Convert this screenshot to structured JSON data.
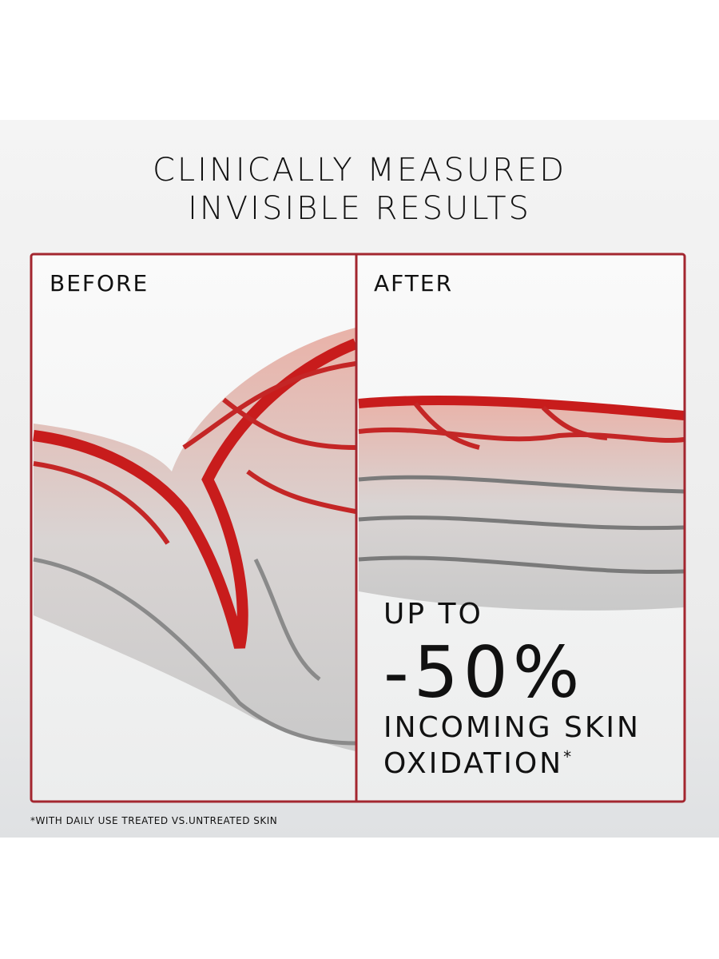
{
  "header": {
    "title_lines": [
      "CLINICALLY MEASURED",
      "INVISIBLE RESULTS"
    ]
  },
  "panels": {
    "before": {
      "label": "BEFORE"
    },
    "after": {
      "label": "AFTER"
    }
  },
  "claim": {
    "lines": [
      "UP TO",
      "-50%",
      "INCOMING SKIN",
      "OXIDATION"
    ],
    "mark": "*"
  },
  "footnote": "*WITH DAILY USE TREATED VS.UNTREATED SKIN"
}
